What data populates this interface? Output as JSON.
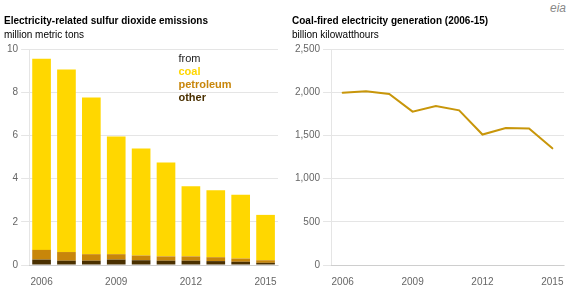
{
  "chart_data": [
    {
      "type": "bar",
      "title": "Electricity-related sulfur dioxide emissions",
      "subtitle": "million metric tons",
      "stacked": true,
      "categories": [
        "2006",
        null,
        null,
        "2009",
        null,
        null,
        "2012",
        null,
        null,
        "2015"
      ],
      "series": [
        {
          "name": "other",
          "color": "#4A3000",
          "values": [
            0.25,
            0.2,
            0.2,
            0.25,
            0.22,
            0.2,
            0.2,
            0.18,
            0.15,
            0.1
          ]
        },
        {
          "name": "petroleum",
          "color": "#C8860A",
          "values": [
            0.45,
            0.4,
            0.3,
            0.25,
            0.22,
            0.2,
            0.2,
            0.18,
            0.15,
            0.12
          ]
        },
        {
          "name": "coal",
          "color": "#FFD700",
          "values": [
            8.85,
            8.45,
            7.25,
            5.45,
            4.95,
            4.35,
            3.25,
            3.1,
            2.95,
            2.1
          ]
        }
      ],
      "ylim": [
        0,
        10
      ],
      "yticks": [
        0,
        2,
        4,
        6,
        8,
        10
      ],
      "grid": true,
      "legend": "upper right",
      "annotations": [
        "from"
      ]
    },
    {
      "type": "line",
      "title": "Coal-fired electricity generation (2006-15)",
      "subtitle": "billion kilowatthours",
      "x": [
        2006,
        2007,
        2008,
        2009,
        2010,
        2011,
        2012,
        2013,
        2014,
        2015
      ],
      "values": [
        1995,
        2010,
        1980,
        1775,
        1840,
        1790,
        1510,
        1585,
        1580,
        1350
      ],
      "color": "#C8960A",
      "xlim": [
        2005.5,
        2015.5
      ],
      "xticks": [
        2006,
        2009,
        2012,
        2015
      ],
      "ylim": [
        0,
        2500
      ],
      "yticks": [
        0,
        500,
        {
          "value": 1000,
          "label": "1,000"
        },
        {
          "value": 1500,
          "label": "1,500"
        },
        {
          "value": 2000,
          "label": "2,000"
        },
        {
          "value": 2500,
          "label": "2,500"
        }
      ],
      "grid": true,
      "annotations": [
        "eia"
      ]
    }
  ]
}
